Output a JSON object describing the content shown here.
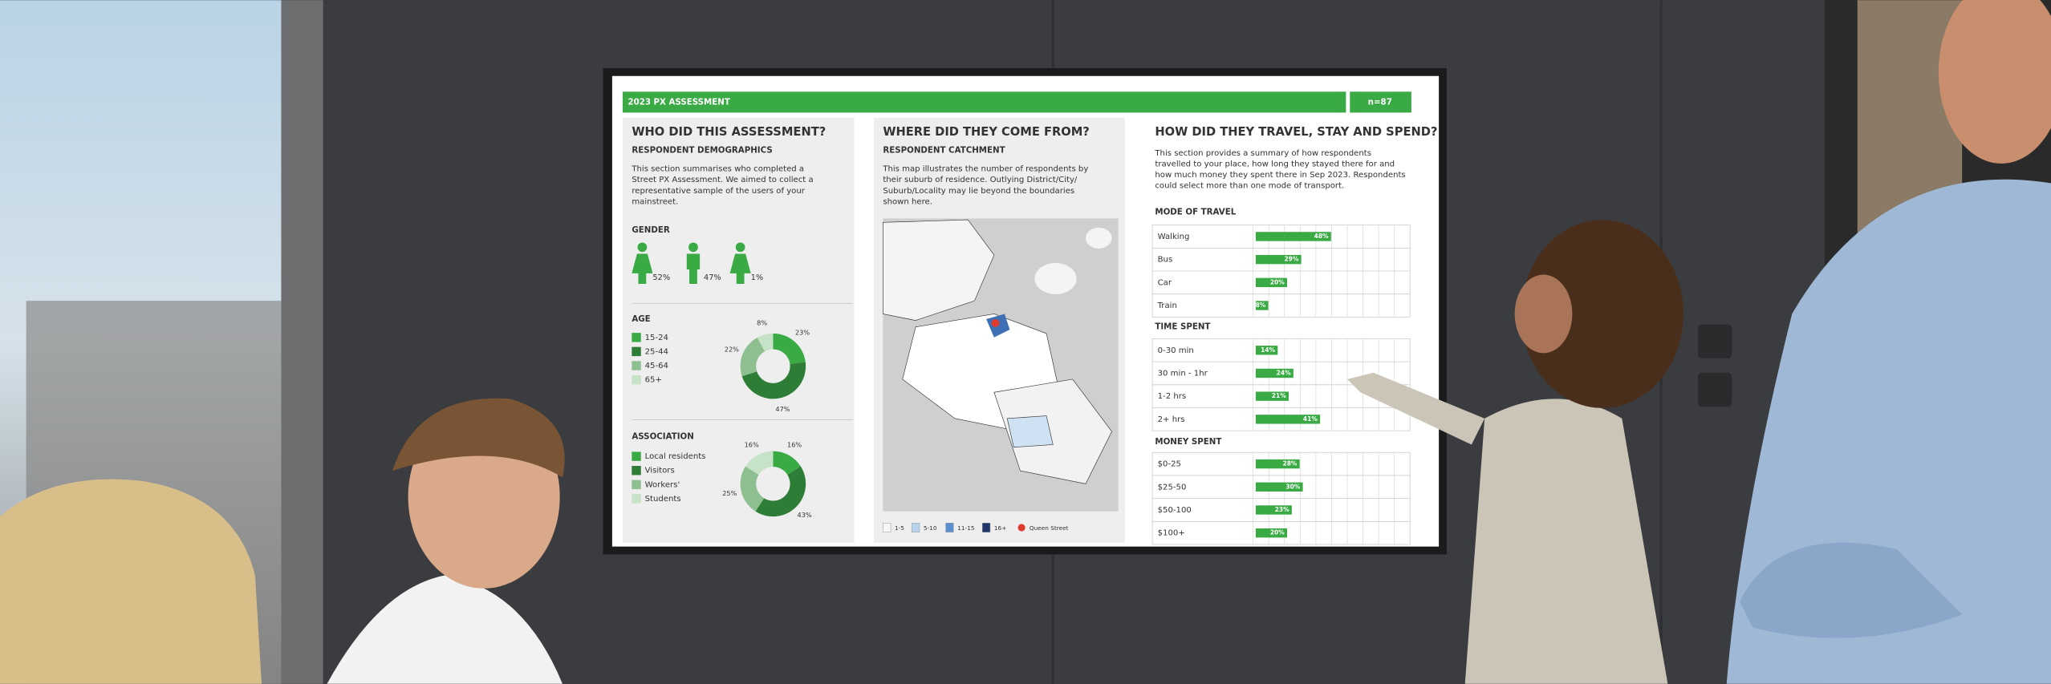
{
  "header": {
    "title": "2023  PX ASSESSMENT",
    "n": "n=87"
  },
  "left": {
    "title": "WHO DID THIS ASSESSMENT?",
    "subtitle": "RESPONDENT DEMOGRAPHICS",
    "text": [
      "This section summarises who completed a",
      "Street PX Assessment. We aimed to collect a",
      "representative sample of the users of your",
      "mainstreet."
    ]
  },
  "middle": {
    "title": "WHERE DID THEY COME FROM?",
    "subtitle": "RESPONDENT CATCHMENT",
    "text": [
      "This map illustrates the number of respondents by",
      "their suburb of residence. Outlying District/City/",
      "Suburb/Locality may lie beyond the boundaries",
      "shown here."
    ],
    "legend": [
      "1-5",
      "5-10",
      "11-15",
      "16+",
      "Queen Street"
    ]
  },
  "right": {
    "title": "HOW DID THEY TRAVEL, STAY AND SPEND?",
    "text": [
      "This section provides a summary of how respondents",
      "travelled to your place, how long they stayed there for and",
      "how much money they spent there in Sep 2023. Respondents",
      "could select more than one mode of transport."
    ]
  },
  "chart_data": [
    {
      "type": "pictogram",
      "title": "GENDER",
      "values": [
        52,
        47,
        1
      ],
      "value_labels": [
        "52%",
        "47%",
        "1%"
      ],
      "color": "#3aaa45"
    },
    {
      "type": "donut",
      "title": "AGE",
      "categories": [
        "15-24",
        "25-44",
        "45-64",
        "65+"
      ],
      "values": [
        23,
        47,
        22,
        8
      ],
      "value_labels": [
        "23%",
        "47%",
        "22%",
        "8%"
      ],
      "colors": [
        "#3aaa45",
        "#2e7d37",
        "#8dbf90",
        "#c6e2c7"
      ]
    },
    {
      "type": "donut",
      "title": "ASSOCIATION",
      "categories": [
        "Local residents",
        "Visitors",
        "Workers'",
        "Students"
      ],
      "values": [
        16,
        43,
        25,
        16
      ],
      "value_labels": [
        "16%",
        "43%",
        "25%",
        "16%"
      ],
      "colors": [
        "#3aaa45",
        "#2e7d37",
        "#8dbf90",
        "#c6e2c7"
      ]
    },
    {
      "type": "hbar",
      "title": "MODE OF TRAVEL",
      "categories": [
        "Walking",
        "Bus",
        "Car",
        "Train"
      ],
      "values": [
        48,
        29,
        20,
        8
      ],
      "value_labels": [
        "48%",
        "29%",
        "20%",
        "8%"
      ],
      "color": "#3aaa45",
      "xlim": [
        0,
        100
      ],
      "xticks": [
        0,
        10,
        20,
        30,
        40,
        50,
        60,
        70,
        80,
        90,
        100
      ],
      "grid": true
    },
    {
      "type": "hbar",
      "title": "TIME SPENT",
      "categories": [
        "0-30 min",
        "30 min - 1hr",
        "1-2 hrs",
        "2+ hrs"
      ],
      "values": [
        14,
        24,
        21,
        41
      ],
      "value_labels": [
        "14%",
        "24%",
        "21%",
        "41%"
      ],
      "color": "#3aaa45",
      "xlim": [
        0,
        100
      ],
      "xticks": [
        0,
        10,
        20,
        30,
        40,
        50,
        60,
        70,
        80,
        90,
        100
      ],
      "grid": true
    },
    {
      "type": "hbar",
      "title": "MONEY SPENT",
      "categories": [
        "$0-25",
        "$25-50",
        "$50-100",
        "$100+"
      ],
      "values": [
        28,
        30,
        23,
        20
      ],
      "value_labels": [
        "28%",
        "30%",
        "23%",
        "20%"
      ],
      "color": "#3aaa45",
      "xlim": [
        0,
        100
      ],
      "xticks": [
        0,
        10,
        20,
        30,
        40,
        50,
        60,
        70,
        80,
        90,
        100
      ],
      "grid": true
    }
  ]
}
